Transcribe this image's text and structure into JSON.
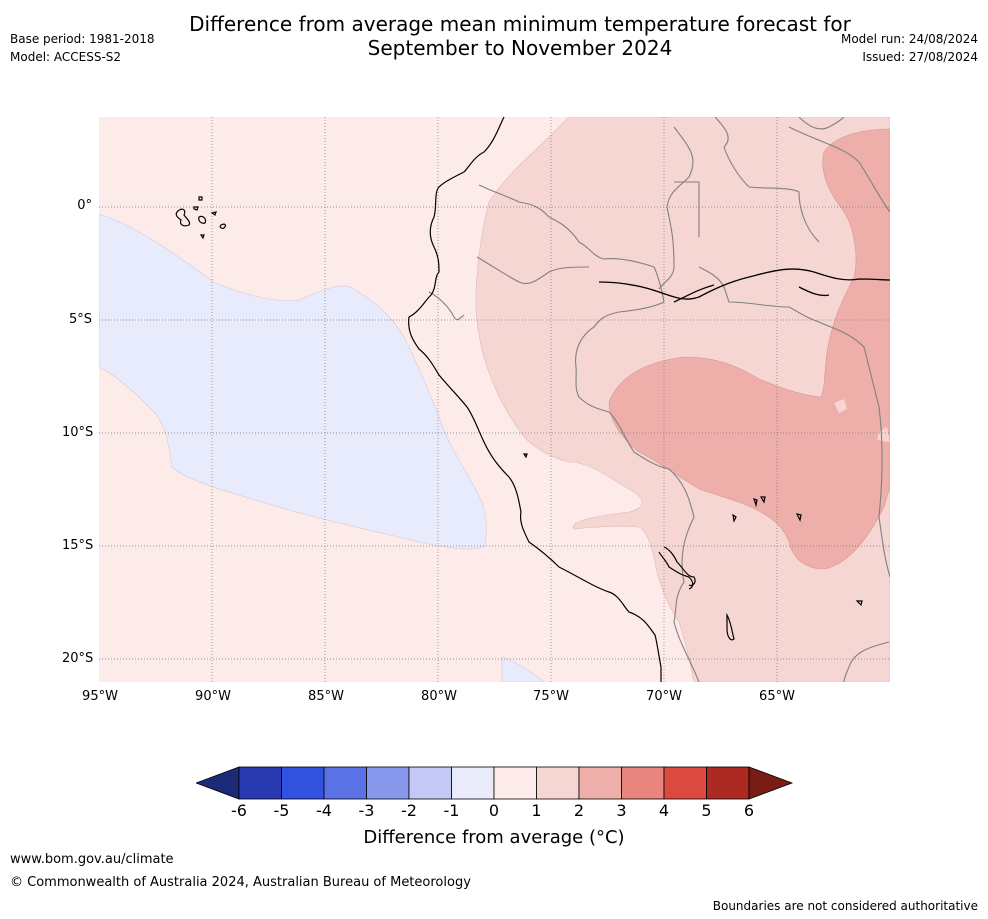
{
  "header": {
    "title_line1": "Difference from average mean minimum temperature forecast for",
    "title_line2": "September to November 2024",
    "base_period": "Base period: 1981-2018",
    "model": "Model: ACCESS-S2",
    "model_run": "Model run: 24/08/2024",
    "issued": "Issued: 27/08/2024"
  },
  "map": {
    "lat_labels": [
      "0°",
      "5°S",
      "10°S",
      "15°S",
      "20°S"
    ],
    "lon_labels": [
      "95°W",
      "90°W",
      "85°W",
      "80°W",
      "75°W",
      "70°W",
      "65°W"
    ],
    "colors": {
      "ocean_anomaly_0_1": "#fcebe9",
      "anomaly_neg1_0": "#e7ebfb",
      "anomaly_1_2": "#f6d6d3",
      "anomaly_2_3": "#eeaeaa",
      "coastline": "#000000",
      "border": "#808080"
    }
  },
  "colorbar": {
    "ticks": [
      "-6",
      "-5",
      "-4",
      "-3",
      "-2",
      "-1",
      "0",
      "1",
      "2",
      "3",
      "4",
      "5",
      "6"
    ],
    "colors": [
      "#1c2a78",
      "#2a3ab0",
      "#3352e0",
      "#5b72e6",
      "#8898ec",
      "#c3c9f4",
      "#e9ebfb",
      "#fcebe9",
      "#f6d6d3",
      "#eeaeaa",
      "#e7857e",
      "#db4a3e",
      "#ad2a22",
      "#7a1c16"
    ],
    "label": "Difference from average (°C)"
  },
  "footer": {
    "website": "www.bom.gov.au/climate",
    "copyright": "© Commonwealth of Australia 2024, Australian Bureau of Meteorology",
    "disclaimer": "Boundaries are not considered authoritative"
  }
}
